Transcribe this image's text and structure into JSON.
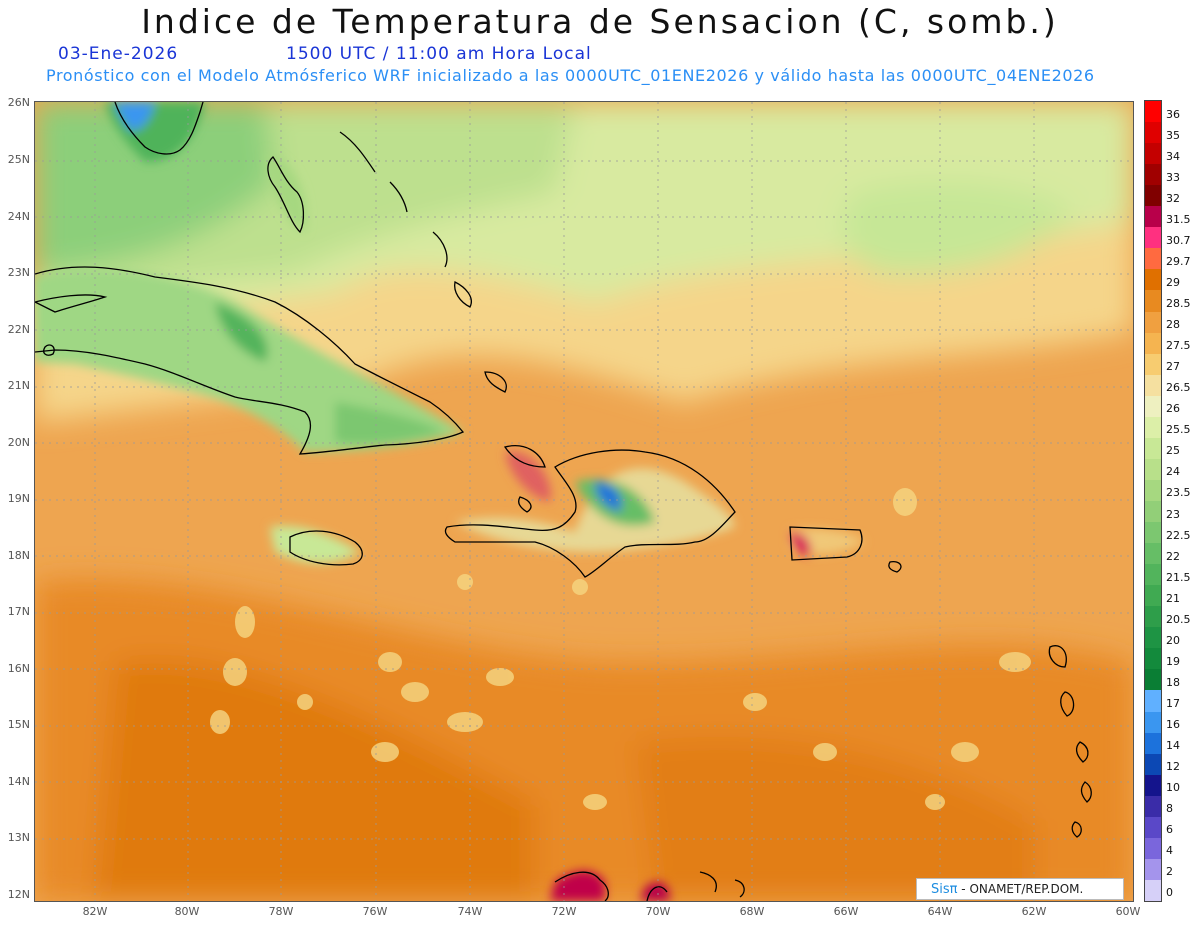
{
  "title": "Indice de Temperatura de Sensacion (C, somb.)",
  "date": "03-Ene-2026",
  "time": "1500 UTC / 11:00 am Hora Local",
  "subtitle": "Pronóstico con el Modelo Atmósferico WRF inicializado a las 0000UTC_01ENE2026 y válido hasta las  0000UTC_04ENE2026",
  "lat_labels": [
    "26N",
    "25N",
    "24N",
    "23N",
    "22N",
    "21N",
    "20N",
    "19N",
    "18N",
    "17N",
    "16N",
    "15N",
    "14N",
    "13N",
    "12N"
  ],
  "lon_labels": [
    "82W",
    "80W",
    "78W",
    "76W",
    "74W",
    "72W",
    "70W",
    "68W",
    "66W",
    "64W",
    "62W",
    "60W"
  ],
  "colorbar": {
    "labels": [
      "36",
      "35",
      "34",
      "33",
      "32",
      "31.5",
      "30.7",
      "29.7",
      "29",
      "28.5",
      "28",
      "27.5",
      "27",
      "26.5",
      "26",
      "25.5",
      "25",
      "24",
      "23.5",
      "23",
      "22.5",
      "22",
      "21.5",
      "21",
      "20.5",
      "20",
      "19",
      "18",
      "17",
      "16",
      "14",
      "12",
      "10",
      "8",
      "6",
      "4",
      "2",
      "0"
    ],
    "colors": [
      "#ff0000",
      "#e00000",
      "#c40000",
      "#a00000",
      "#800000",
      "#b8004a",
      "#ff3080",
      "#ff6a40",
      "#e07000",
      "#e88a20",
      "#f0a040",
      "#f5b450",
      "#f7cc70",
      "#f5e0a0",
      "#eef0c0",
      "#dcefa8",
      "#c8e896",
      "#b8e08a",
      "#a6d880",
      "#92cf78",
      "#7cc770",
      "#66be66",
      "#52b45c",
      "#40aa52",
      "#2e9e4a",
      "#1e9444",
      "#138a3c",
      "#0a7e34",
      "#60b0ff",
      "#3a96f0",
      "#1c72dc",
      "#0c48b4",
      "#14148c",
      "#3a2ca8",
      "#5a48c8",
      "#7a66dc",
      "#a494ec",
      "#d6d0f8"
    ]
  },
  "logo": {
    "brand": "Sisπ",
    "org": "- ONAMET/REP.DOM."
  }
}
